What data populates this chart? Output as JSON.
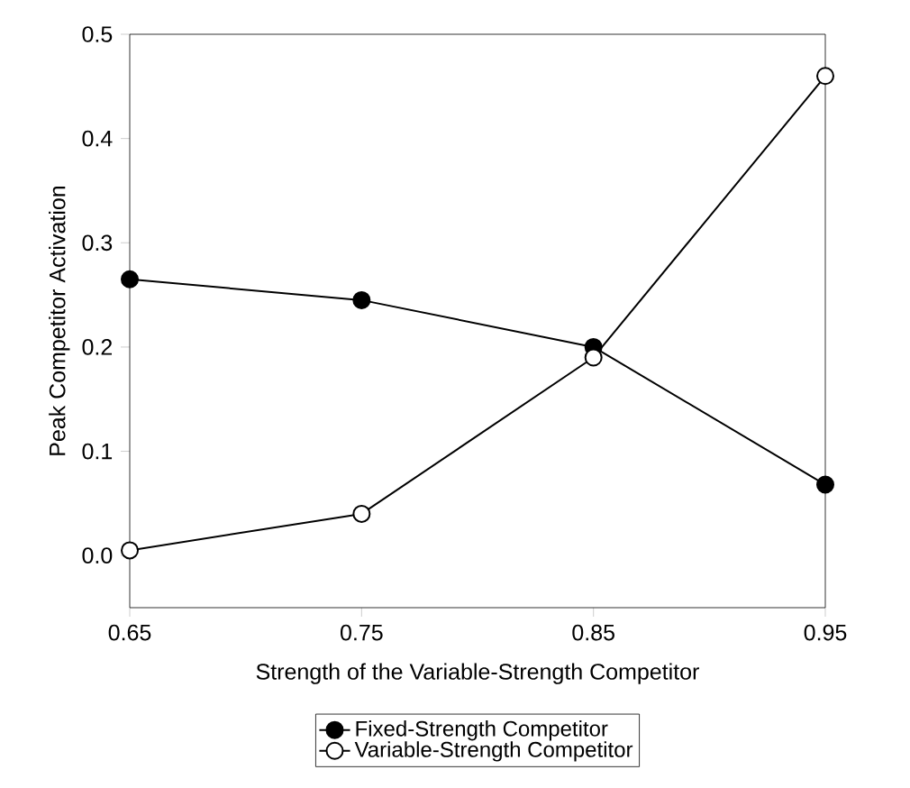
{
  "chart_data": {
    "type": "line",
    "xlabel": "Strength of the Variable-Strength Competitor",
    "ylabel": "Peak Competitor Activation",
    "x": [
      0.65,
      0.75,
      0.85,
      0.95
    ],
    "series": [
      {
        "name": "Fixed-Strength Competitor",
        "color": "#000000",
        "values": [
          0.265,
          0.245,
          0.2,
          0.068
        ]
      },
      {
        "name": "Variable-Strength Competitor",
        "color": "#ffffff",
        "values": [
          0.005,
          0.04,
          0.19,
          0.46
        ]
      }
    ],
    "xlim": [
      0.65,
      0.95
    ],
    "ylim": [
      -0.05,
      0.5
    ],
    "xticks": [
      0.65,
      0.75,
      0.85,
      0.95
    ],
    "yticks": [
      {
        "value": 0,
        "label": "0.0"
      },
      {
        "value": 0.1,
        "label": "0.1"
      },
      {
        "value": 0.2,
        "label": "0.2"
      },
      {
        "value": 0.3,
        "label": "0.3"
      },
      {
        "value": 0.4,
        "label": "0.4"
      },
      {
        "value": 0.5,
        "label": "0.5"
      }
    ],
    "grid": false,
    "legend": "bottom",
    "marker": "circle",
    "line_style": "solid"
  }
}
